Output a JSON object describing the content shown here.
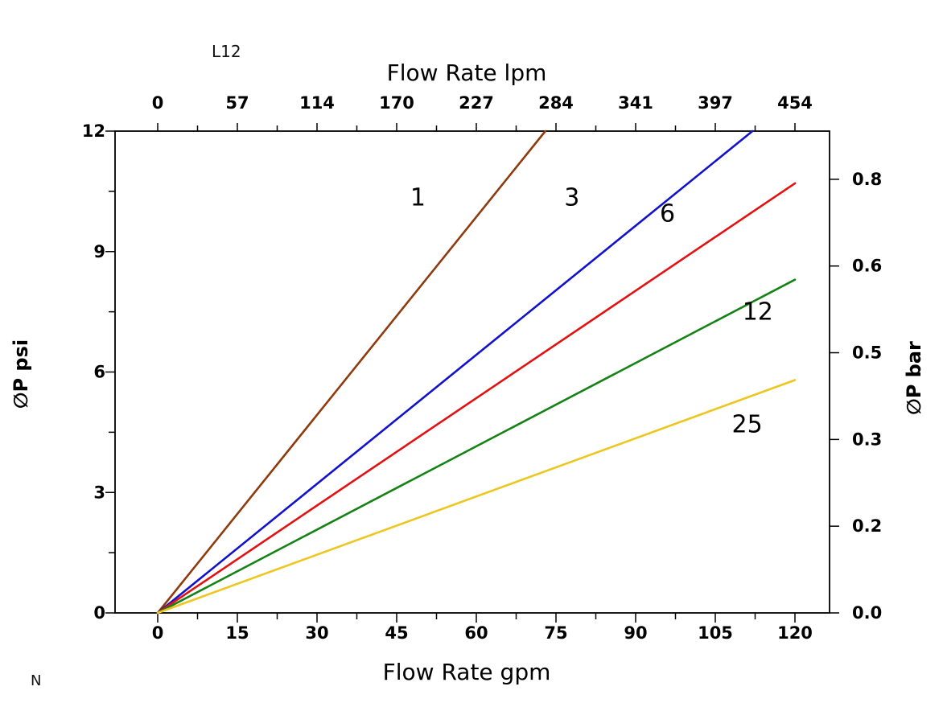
{
  "annotations": {
    "top_left": "L12",
    "bottom_left": "N"
  },
  "chart_data": {
    "type": "line",
    "title": "",
    "grid": false,
    "legend": "none",
    "top_axis": {
      "label": "Flow Rate lpm",
      "ticks": [
        "0",
        "57",
        "114",
        "170",
        "227",
        "284",
        "341",
        "397",
        "454"
      ]
    },
    "bottom_axis": {
      "label": "Flow Rate gpm",
      "ticks": [
        "0",
        "15",
        "30",
        "45",
        "60",
        "75",
        "90",
        "105",
        "120"
      ],
      "tick_values": [
        0,
        15,
        30,
        45,
        60,
        75,
        90,
        105,
        120
      ],
      "range": [
        0,
        120
      ]
    },
    "left_axis": {
      "label": "∅P psi",
      "ticks": [
        "0",
        "3",
        "6",
        "9",
        "12"
      ],
      "tick_values": [
        0,
        3,
        6,
        9,
        12
      ],
      "minor_tick_values": [
        1.5,
        4.5,
        7.5,
        10.5
      ],
      "range": [
        0,
        12
      ]
    },
    "right_axis": {
      "label": "∅P bar",
      "ticks": [
        "0.0",
        "0.2",
        "0.3",
        "0.5",
        "0.6",
        "0.8"
      ],
      "fractions": [
        0,
        0.18,
        0.36,
        0.54,
        0.72,
        0.9
      ]
    },
    "series": [
      {
        "name": "1",
        "color": "#8e3b0e",
        "points": [
          [
            0,
            0
          ],
          [
            73,
            12
          ]
        ],
        "label_pos": [
          49,
          10.15
        ]
      },
      {
        "name": "3",
        "color": "#1212cc",
        "points": [
          [
            0,
            0
          ],
          [
            112,
            12
          ]
        ],
        "label_pos": [
          78,
          10.15
        ]
      },
      {
        "name": "6",
        "color": "#e31212",
        "points": [
          [
            0,
            0
          ],
          [
            120,
            10.7
          ]
        ],
        "label_pos": [
          96,
          9.75
        ]
      },
      {
        "name": "12",
        "color": "#148214",
        "points": [
          [
            0,
            0
          ],
          [
            120,
            8.3
          ]
        ],
        "label_pos": [
          113,
          7.3
        ]
      },
      {
        "name": "25",
        "color": "#edc71f",
        "points": [
          [
            0,
            0
          ],
          [
            120,
            5.8
          ]
        ],
        "label_pos": [
          111,
          4.5
        ]
      }
    ]
  }
}
